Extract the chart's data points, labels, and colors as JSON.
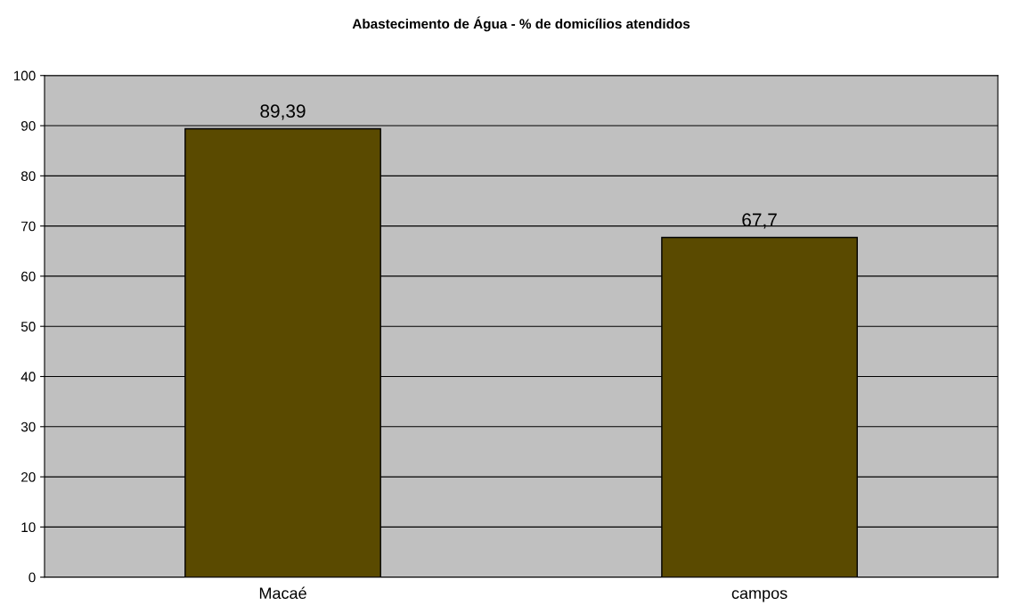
{
  "chart_data": {
    "type": "bar",
    "title": "Abastecimento de Água - % de domicílios atendidos",
    "categories": [
      "Macaé",
      "campos"
    ],
    "values": [
      89.39,
      67.7
    ],
    "value_labels": [
      "89,39",
      "67,7"
    ],
    "color": "#5a4a00",
    "ylim": [
      0,
      100
    ],
    "yticks": [
      0,
      10,
      20,
      30,
      40,
      50,
      60,
      70,
      80,
      90,
      100
    ],
    "grid": "y",
    "legend": false
  }
}
